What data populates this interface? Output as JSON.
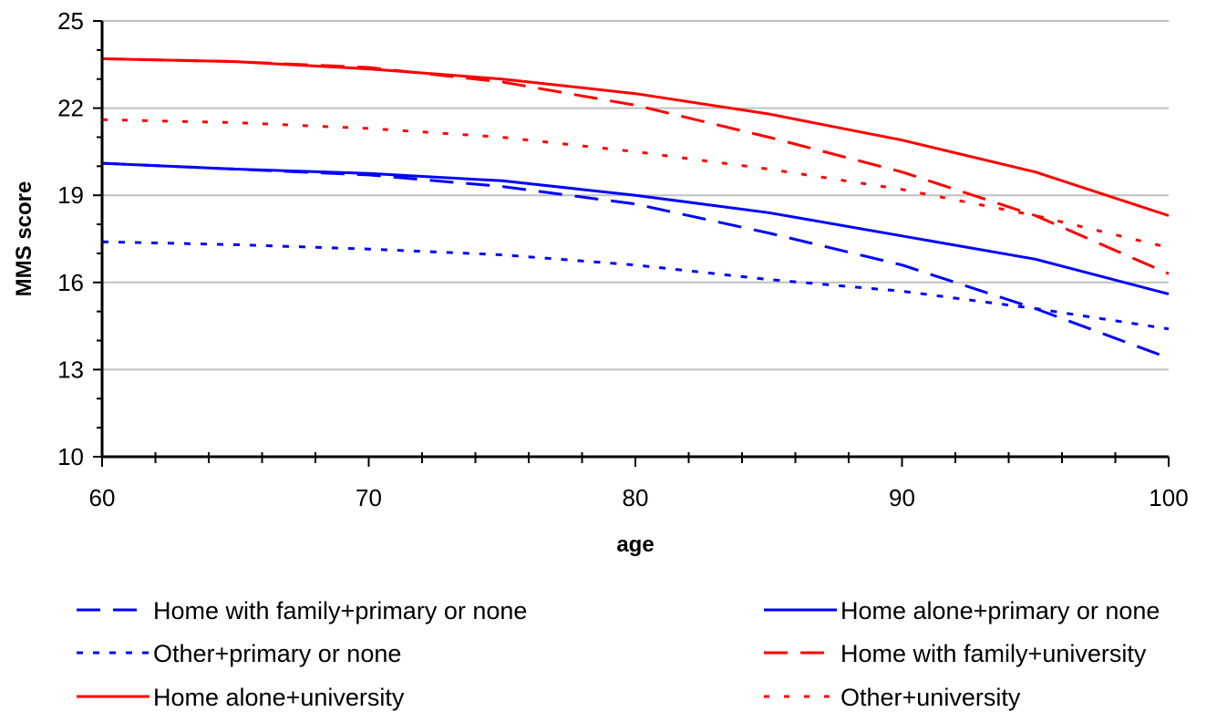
{
  "chart_data": {
    "type": "line",
    "title": "",
    "xlabel": "age",
    "ylabel": "MMS score",
    "xlim": [
      60,
      100
    ],
    "ylim": [
      10,
      25
    ],
    "xticks": [
      60,
      70,
      80,
      90,
      100
    ],
    "yticks": [
      10,
      13,
      16,
      19,
      22,
      25
    ],
    "grid": "horizontal",
    "legend_position": "bottom",
    "x": [
      60,
      65,
      70,
      75,
      80,
      85,
      90,
      95,
      100
    ],
    "series": [
      {
        "name": "Home with family+primary or none",
        "color": "#0000ff",
        "style": "long-dash",
        "values": [
          20.1,
          19.9,
          19.7,
          19.3,
          18.7,
          17.7,
          16.6,
          15.1,
          13.4
        ]
      },
      {
        "name": "Home alone+primary or none",
        "color": "#0000ff",
        "style": "solid",
        "values": [
          20.1,
          19.9,
          19.75,
          19.5,
          19.0,
          18.4,
          17.6,
          16.8,
          15.6
        ]
      },
      {
        "name": "Other+primary or none",
        "color": "#0000ff",
        "style": "dotted",
        "values": [
          17.4,
          17.3,
          17.15,
          16.95,
          16.6,
          16.1,
          15.7,
          15.1,
          14.4
        ]
      },
      {
        "name": "Home with family+university",
        "color": "#ff0000",
        "style": "long-dash",
        "values": [
          23.7,
          23.6,
          23.4,
          22.9,
          22.1,
          21.0,
          19.8,
          18.3,
          16.3
        ]
      },
      {
        "name": "Home alone+university",
        "color": "#ff0000",
        "style": "solid",
        "values": [
          23.7,
          23.6,
          23.35,
          23.0,
          22.5,
          21.8,
          20.9,
          19.8,
          18.3
        ]
      },
      {
        "name": "Other+university",
        "color": "#ff0000",
        "style": "short-dot",
        "values": [
          21.6,
          21.5,
          21.3,
          21.0,
          20.5,
          19.9,
          19.2,
          18.3,
          17.2
        ]
      }
    ]
  }
}
